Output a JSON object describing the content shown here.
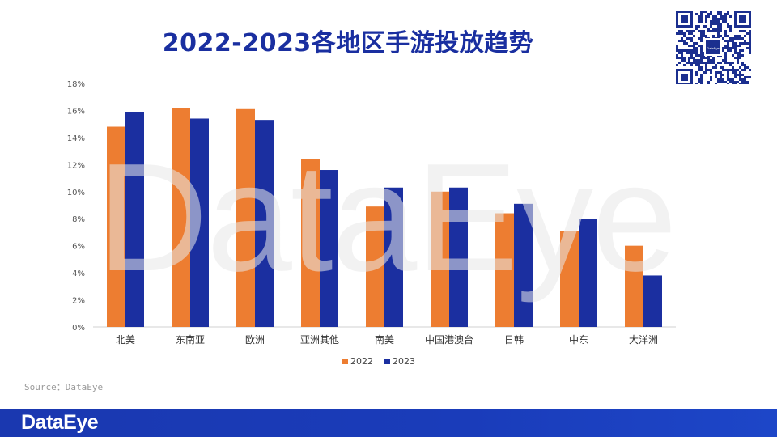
{
  "title": "2022-2023各地区手游投放趋势",
  "watermark_text": "DataEye",
  "source": "Source：DataEye",
  "footer": {
    "logo": "DataEye"
  },
  "qr": {
    "center_text": "DataEye"
  },
  "colors": {
    "title": "#1a2fa0",
    "series_2022": "#ed7d31",
    "series_2023": "#1b2fa0",
    "footer_bar": "#1a38b0"
  },
  "chart_data": {
    "type": "bar",
    "title": "2022-2023各地区手游投放趋势",
    "xlabel": "",
    "ylabel": "",
    "ylim": [
      0,
      18
    ],
    "yticks": [
      "0%",
      "2%",
      "4%",
      "6%",
      "8%",
      "10%",
      "12%",
      "14%",
      "16%",
      "18%"
    ],
    "ytick_values": [
      0,
      2,
      4,
      6,
      8,
      10,
      12,
      14,
      16,
      18
    ],
    "grid": false,
    "legend_position": "bottom",
    "categories": [
      "北美",
      "东南亚",
      "欧洲",
      "亚洲其他",
      "南美",
      "中国港澳台",
      "日韩",
      "中东",
      "大洋洲"
    ],
    "series": [
      {
        "name": "2022",
        "color": "#ed7d31",
        "values": [
          14.8,
          16.2,
          16.1,
          12.4,
          8.9,
          10.0,
          8.4,
          7.1,
          6.0
        ]
      },
      {
        "name": "2023",
        "color": "#1b2fa0",
        "values": [
          15.9,
          15.4,
          15.3,
          11.6,
          10.3,
          10.3,
          9.1,
          8.0,
          3.8
        ]
      }
    ]
  }
}
